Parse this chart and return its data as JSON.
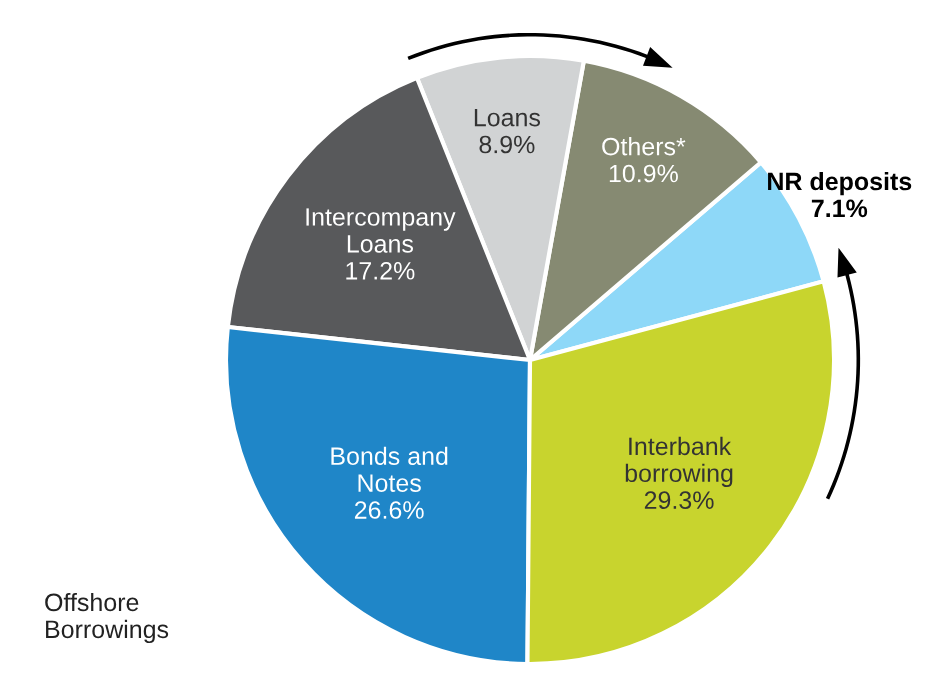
{
  "chart_data": {
    "type": "pie",
    "categories": [
      "NR deposits",
      "Others*",
      "Loans",
      "Intercompany\nLoans",
      "Bonds and\nNotes",
      "Interbank\nborrowing"
    ],
    "values": [
      7.1,
      10.9,
      8.9,
      17.2,
      26.6,
      29.3
    ],
    "colors": [
      "#8ed8f8",
      "#868a72",
      "#d1d3d4",
      "#58595b",
      "#1f86c8",
      "#c8d42e"
    ],
    "value_labels": [
      "7.1%",
      "10.9%",
      "8.9%",
      "17.2%",
      "26.6%",
      "29.3%"
    ],
    "annotations": [
      "Offshore\nBorrowings"
    ]
  }
}
